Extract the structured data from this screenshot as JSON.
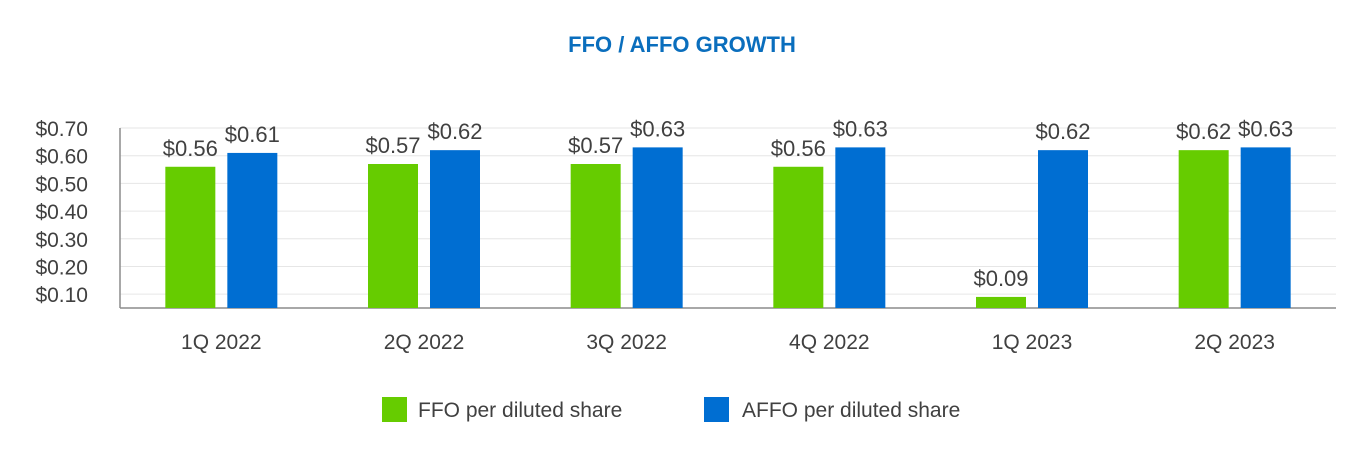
{
  "chart_data": {
    "type": "bar",
    "title": "FFO / AFFO GROWTH",
    "categories": [
      "1Q 2022",
      "2Q 2022",
      "3Q 2022",
      "4Q 2022",
      "1Q 2023",
      "2Q 2023"
    ],
    "series": [
      {
        "name": "FFO per diluted share",
        "color": "#66cc00",
        "values": [
          0.56,
          0.57,
          0.57,
          0.56,
          0.09,
          0.62
        ],
        "labels": [
          "$0.56",
          "$0.57",
          "$0.57",
          "$0.56",
          "$0.09",
          "$0.62"
        ]
      },
      {
        "name": "AFFO per diluted share",
        "color": "#006ed2",
        "values": [
          0.61,
          0.62,
          0.63,
          0.63,
          0.62,
          0.63
        ],
        "labels": [
          "$0.61",
          "$0.62",
          "$0.63",
          "$0.63",
          "$0.62",
          "$0.63"
        ]
      }
    ],
    "yticks": [
      0.1,
      0.2,
      0.3,
      0.4,
      0.5,
      0.6,
      0.7
    ],
    "ytick_labels": [
      "$0.10",
      "$0.20",
      "$0.30",
      "$0.40",
      "$0.50",
      "$0.60",
      "$0.70"
    ],
    "ylim": [
      0.05,
      0.7
    ],
    "xlabel": "",
    "ylabel": "",
    "legend_position": "bottom-center",
    "grid": true
  }
}
